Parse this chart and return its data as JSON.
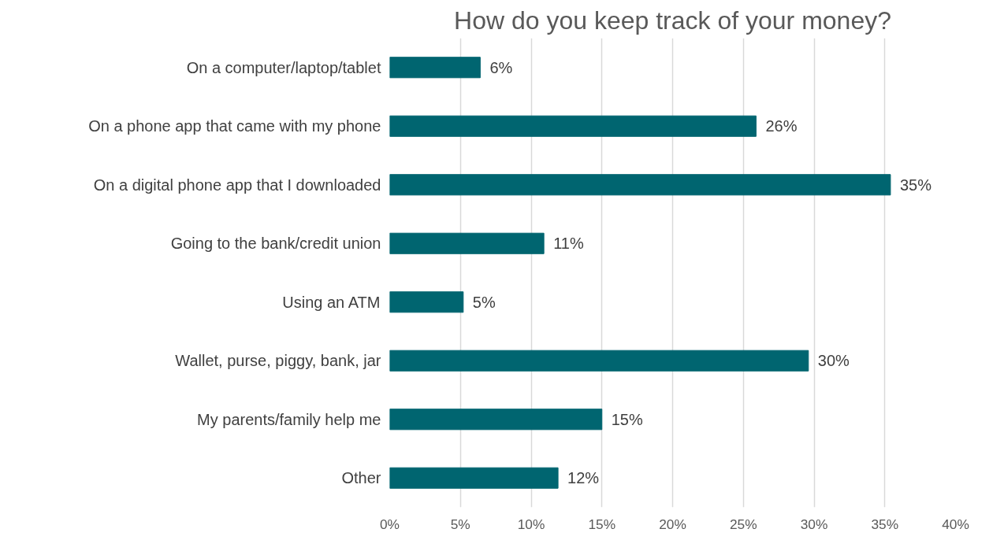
{
  "chart_data": {
    "type": "bar",
    "orientation": "horizontal",
    "title": "How do you keep track of your money?",
    "categories": [
      "On a computer/laptop/tablet",
      "On a phone app that came with my phone",
      "On a digital phone app that I downloaded",
      "Going to the bank/credit union",
      "Using an ATM",
      "Wallet, purse, piggy, bank, jar",
      "My parents/family help me",
      "Other"
    ],
    "values": [
      6.4,
      25.9,
      35.4,
      10.9,
      5.2,
      29.6,
      15.0,
      11.9
    ],
    "value_labels": [
      "6%",
      "26%",
      "35%",
      "11%",
      "5%",
      "30%",
      "15%",
      "12%"
    ],
    "color": "#006570",
    "xlim": [
      0,
      40
    ],
    "xticks": [
      {
        "value": 0,
        "label": "0%"
      },
      {
        "value": 5,
        "label": "5%"
      },
      {
        "value": 10,
        "label": "10%"
      },
      {
        "value": 15,
        "label": "15%"
      },
      {
        "value": 20,
        "label": "20%"
      },
      {
        "value": 25,
        "label": "25%"
      },
      {
        "value": 30,
        "label": "30%"
      },
      {
        "value": 35,
        "label": "35%"
      },
      {
        "value": 40,
        "label": "40%"
      }
    ],
    "grid": "x"
  }
}
